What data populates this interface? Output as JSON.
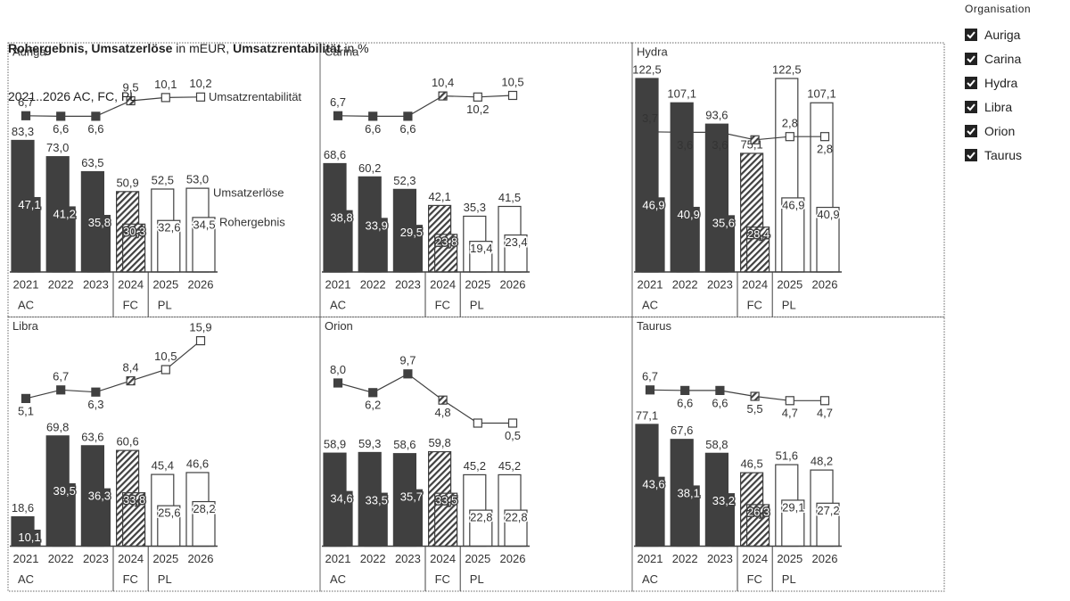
{
  "header": {
    "title_parts": [
      {
        "text": "Rohergebnis, Umsatzerlöse",
        "bold": true
      },
      {
        "text": " in mEUR, ",
        "bold": false
      },
      {
        "text": "Umsatzrentabilität",
        "bold": true
      },
      {
        "text": " in %",
        "bold": false
      }
    ],
    "subtitle": "2021..2026 AC, FC, PL"
  },
  "slicer": {
    "title": "Organisation",
    "items": [
      {
        "label": "Auriga",
        "checked": true
      },
      {
        "label": "Carina",
        "checked": true
      },
      {
        "label": "Hydra",
        "checked": true
      },
      {
        "label": "Libra",
        "checked": true
      },
      {
        "label": "Orion",
        "checked": true
      },
      {
        "label": "Taurus",
        "checked": true
      }
    ]
  },
  "chart_data": [
    {
      "type": "bar",
      "title": "Auriga",
      "color": "#404040",
      "ylim": [
        0,
        140
      ],
      "y2lim": [
        0,
        20
      ],
      "categories": [
        "2021",
        "2022",
        "2023",
        "2024",
        "2025",
        "2026"
      ],
      "scenarios": [
        {
          "label": "AC",
          "size": 3,
          "style": "solid"
        },
        {
          "label": "FC",
          "size": 1,
          "style": "hatched"
        },
        {
          "label": "PL",
          "size": 2,
          "style": "outline"
        }
      ],
      "series": [
        {
          "name": "Umsatzerlöse",
          "type": "bar",
          "values": [
            83.3,
            73.0,
            63.5,
            50.9,
            52.5,
            53.0
          ],
          "value_labels": [
            "83,3",
            "73,0",
            "63,5",
            "50,9",
            "52,5",
            "53,0"
          ]
        },
        {
          "name": "Rohergebnis",
          "type": "bar",
          "values": [
            47.1,
            41.2,
            35.8,
            30.3,
            32.6,
            34.5
          ],
          "value_labels": [
            "47,1",
            "41,2",
            "35,8",
            "30,3",
            "32,6",
            "34,5"
          ]
        },
        {
          "name": "Umsatzrentabilität",
          "type": "line",
          "axis": "y2",
          "values": [
            6.7,
            6.6,
            6.6,
            9.5,
            10.1,
            10.2
          ],
          "value_labels": [
            "6,7",
            "6,6",
            "6,6",
            "9,5",
            "10,1",
            "10,2"
          ]
        }
      ]
    },
    {
      "type": "bar",
      "title": "Carina",
      "color": "#404040",
      "ylim": [
        0,
        140
      ],
      "y2lim": [
        0,
        20
      ],
      "categories": [
        "2021",
        "2022",
        "2023",
        "2024",
        "2025",
        "2026"
      ],
      "scenarios": [
        {
          "label": "AC",
          "size": 3,
          "style": "solid"
        },
        {
          "label": "FC",
          "size": 1,
          "style": "hatched"
        },
        {
          "label": "PL",
          "size": 2,
          "style": "outline"
        }
      ],
      "series": [
        {
          "type": "bar",
          "values": [
            68.6,
            60.2,
            52.3,
            42.1,
            35.3,
            41.5
          ],
          "value_labels": [
            "68,6",
            "60,2",
            "52,3",
            "42,1",
            "35,3",
            "41,5"
          ]
        },
        {
          "type": "bar",
          "values": [
            38.8,
            33.9,
            29.5,
            23.8,
            19.4,
            23.4
          ],
          "value_labels": [
            "38,8",
            "33,9",
            "29,5",
            "23,8",
            "19,4",
            "23,4"
          ]
        },
        {
          "type": "line",
          "axis": "y2",
          "values": [
            6.7,
            6.6,
            6.6,
            10.4,
            10.2,
            10.5
          ],
          "value_labels": [
            "6,7",
            "6,6",
            "6,6",
            "10,4",
            "10,2",
            "10,5"
          ]
        }
      ]
    },
    {
      "type": "bar",
      "title": "Hydra",
      "color": "#404040",
      "ylim": [
        0,
        140
      ],
      "y2lim": [
        0,
        20
      ],
      "categories": [
        "2021",
        "2022",
        "2023",
        "2024",
        "2025",
        "2026"
      ],
      "scenarios": [
        {
          "label": "AC",
          "size": 3,
          "style": "solid"
        },
        {
          "label": "FC",
          "size": 1,
          "style": "hatched"
        },
        {
          "label": "PL",
          "size": 2,
          "style": "outline"
        }
      ],
      "series": [
        {
          "type": "bar",
          "values": [
            122.5,
            107.1,
            93.6,
            75.1,
            122.5,
            107.1
          ],
          "value_labels": [
            "122,5",
            "107,1",
            "93,6",
            "75,1",
            "122,5",
            "107,1"
          ]
        },
        {
          "type": "bar",
          "values": [
            46.9,
            40.9,
            35.6,
            28.4,
            46.9,
            40.9
          ],
          "value_labels": [
            "46,9",
            "40,9",
            "35,6",
            "28,4",
            "46,9",
            "40,9"
          ]
        },
        {
          "type": "line",
          "axis": "y2",
          "values": [
            3.7,
            3.6,
            3.6,
            2.2,
            2.8,
            2.8
          ],
          "value_labels": [
            "3,7",
            "3,6",
            "3,6",
            null,
            "2,8",
            "2,8"
          ]
        }
      ]
    },
    {
      "type": "bar",
      "title": "Libra",
      "color": "#404040",
      "ylim": [
        0,
        140
      ],
      "y2lim": [
        0,
        20
      ],
      "categories": [
        "2021",
        "2022",
        "2023",
        "2024",
        "2025",
        "2026"
      ],
      "scenarios": [
        {
          "label": "AC",
          "size": 3,
          "style": "solid"
        },
        {
          "label": "FC",
          "size": 1,
          "style": "hatched"
        },
        {
          "label": "PL",
          "size": 2,
          "style": "outline"
        }
      ],
      "series": [
        {
          "type": "bar",
          "values": [
            18.6,
            69.8,
            63.6,
            60.6,
            45.4,
            46.6
          ],
          "value_labels": [
            "18,6",
            "69,8",
            "63,6",
            "60,6",
            "45,4",
            "46,6"
          ]
        },
        {
          "type": "bar",
          "values": [
            10.1,
            39.5,
            36.3,
            33.8,
            25.6,
            28.2
          ],
          "value_labels": [
            "10,1",
            "39,5",
            "36,3",
            "33,8",
            "25,6",
            "28,2"
          ]
        },
        {
          "type": "line",
          "axis": "y2",
          "values": [
            5.1,
            6.7,
            6.3,
            8.4,
            10.5,
            15.9
          ],
          "value_labels": [
            "5,1",
            "6,7",
            "6,3",
            "8,4",
            "10,5",
            "15,9"
          ]
        }
      ]
    },
    {
      "type": "bar",
      "title": "Orion",
      "color": "#404040",
      "ylim": [
        0,
        140
      ],
      "y2lim": [
        0,
        20
      ],
      "categories": [
        "2021",
        "2022",
        "2023",
        "2024",
        "2025",
        "2026"
      ],
      "scenarios": [
        {
          "label": "AC",
          "size": 3,
          "style": "solid"
        },
        {
          "label": "FC",
          "size": 1,
          "style": "hatched"
        },
        {
          "label": "PL",
          "size": 2,
          "style": "outline"
        }
      ],
      "series": [
        {
          "type": "bar",
          "values": [
            58.9,
            59.3,
            58.6,
            59.8,
            45.2,
            45.2
          ],
          "value_labels": [
            "58,9",
            "59,3",
            "58,6",
            "59,8",
            "45,2",
            "45,2"
          ]
        },
        {
          "type": "bar",
          "values": [
            34.6,
            33.5,
            35.7,
            33.5,
            22.8,
            22.8
          ],
          "value_labels": [
            "34,6",
            "33,5",
            "35,7",
            "33,5",
            "22,8",
            "22,8"
          ]
        },
        {
          "type": "line",
          "axis": "y2",
          "values": [
            8.0,
            6.2,
            9.7,
            4.8,
            0.5,
            0.5
          ],
          "value_labels": [
            "8,0",
            "6,2",
            "9,7",
            "4,8",
            null,
            "0,5"
          ]
        }
      ]
    },
    {
      "type": "bar",
      "title": "Taurus",
      "color": "#404040",
      "ylim": [
        0,
        140
      ],
      "y2lim": [
        0,
        20
      ],
      "categories": [
        "2021",
        "2022",
        "2023",
        "2024",
        "2025",
        "2026"
      ],
      "scenarios": [
        {
          "label": "AC",
          "size": 3,
          "style": "solid"
        },
        {
          "label": "FC",
          "size": 1,
          "style": "hatched"
        },
        {
          "label": "PL",
          "size": 2,
          "style": "outline"
        }
      ],
      "series": [
        {
          "type": "bar",
          "values": [
            77.1,
            67.6,
            58.8,
            46.5,
            51.6,
            48.2
          ],
          "value_labels": [
            "77,1",
            "67,6",
            "58,8",
            "46,5",
            "51,6",
            "48,2"
          ]
        },
        {
          "type": "bar",
          "values": [
            43.6,
            38.1,
            33.2,
            26.3,
            29.1,
            27.2
          ],
          "value_labels": [
            "43,6",
            "38,1",
            "33,2",
            "26,3",
            "29,1",
            "27,2"
          ]
        },
        {
          "type": "line",
          "axis": "y2",
          "values": [
            6.7,
            6.6,
            6.6,
            5.5,
            4.7,
            4.7
          ],
          "value_labels": [
            "6,7",
            "6,6",
            "6,6",
            "5,5",
            "4,7",
            "4,7"
          ]
        }
      ]
    }
  ]
}
